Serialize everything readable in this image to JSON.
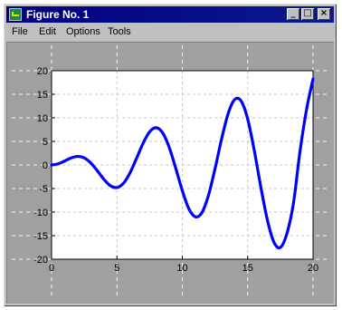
{
  "window": {
    "title": "Figure No. 1",
    "minimize_glyph": "_",
    "maximize_glyph": "□",
    "close_glyph": "×"
  },
  "menu": {
    "items": [
      {
        "label": "File"
      },
      {
        "label": "Edit"
      },
      {
        "label": "Options"
      },
      {
        "label": "Tools"
      }
    ]
  },
  "colors": {
    "title_bar": "#000080",
    "line": "#0000ff",
    "figure_bg": "#a0a0a0",
    "axes_bg": "#ffffff"
  },
  "chart_data": {
    "type": "line",
    "title": "",
    "xlabel": "",
    "ylabel": "",
    "xlim": [
      0,
      20
    ],
    "ylim": [
      -20,
      20
    ],
    "xticks": [
      0,
      5,
      10,
      15,
      20
    ],
    "yticks": [
      -20,
      -15,
      -10,
      -5,
      0,
      5,
      10,
      15,
      20
    ],
    "grid": true,
    "series": [
      {
        "x": [
          0,
          0.5,
          1,
          1.5,
          2,
          2.5,
          3,
          3.5,
          4,
          4.5,
          5,
          5.5,
          6,
          6.5,
          7,
          7.5,
          8,
          8.5,
          9,
          9.5,
          10,
          10.5,
          11,
          11.5,
          12,
          12.5,
          13,
          13.5,
          14,
          14.5,
          15,
          15.5,
          16,
          16.5,
          17,
          17.5,
          18,
          18.5,
          19,
          19.5,
          20
        ],
        "y": [
          0,
          0.24,
          0.84,
          1.5,
          1.82,
          1.5,
          0.42,
          -1.23,
          -3.03,
          -4.4,
          -4.79,
          -3.89,
          -1.68,
          1.41,
          4.6,
          7.04,
          7.91,
          6.8,
          3.71,
          -0.72,
          -5.44,
          -9.28,
          -11.0,
          -10.11,
          -6.44,
          -0.83,
          5.46,
          10.85,
          13.87,
          13.57,
          9.75,
          3.14,
          -4.61,
          -11.58,
          -16.34,
          -17.5,
          -14.56,
          -8.16,
          2.85,
          11.71,
          18.26
        ]
      }
    ]
  }
}
